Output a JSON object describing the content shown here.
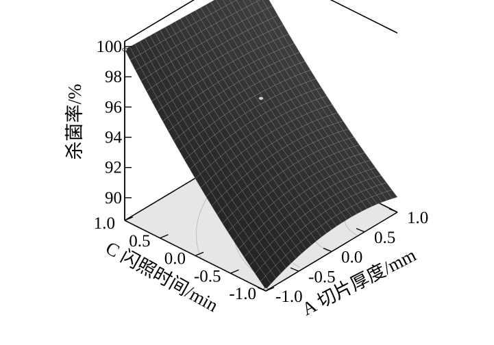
{
  "chart_data": {
    "type": "surface3d",
    "title": "",
    "zlabel": "杀菌率/%",
    "xlabel": "A 切片厚度/mm",
    "ylabel": "C 闪照时间/min",
    "z_ticks": [
      "100",
      "98",
      "96",
      "94",
      "92",
      "90"
    ],
    "x_ticks": [
      "-1.0",
      "-0.5",
      "0.0",
      "0.5",
      "1.0"
    ],
    "y_ticks": [
      "1.0",
      "0.5",
      "0.0",
      "-0.5",
      "-1.0"
    ],
    "zlim": [
      88.5,
      100
    ],
    "xlim": [
      -1,
      1
    ],
    "ylim": [
      -1,
      1
    ],
    "surface_corners": [
      {
        "x": -1,
        "y": 1,
        "z": 99.8
      },
      {
        "x": 1,
        "y": 1,
        "z": 99.4
      },
      {
        "x": -1,
        "y": -1,
        "z": 88.6
      },
      {
        "x": 1,
        "y": -1,
        "z": 89.5
      }
    ],
    "design_points": [
      {
        "x": -1,
        "y": 1,
        "z": 99.8
      },
      {
        "x": 1,
        "y": 1,
        "z": 99.4
      },
      {
        "x": 0,
        "y": 0,
        "z": 96.3
      },
      {
        "x": -1,
        "y": -1,
        "z": 88.6
      }
    ],
    "floor_contours": true,
    "colors": {
      "surface": "#2b2b2b",
      "mesh": "#9a9a9a",
      "floor": "#e6e6e6",
      "contour": "#bdbdbd"
    }
  }
}
